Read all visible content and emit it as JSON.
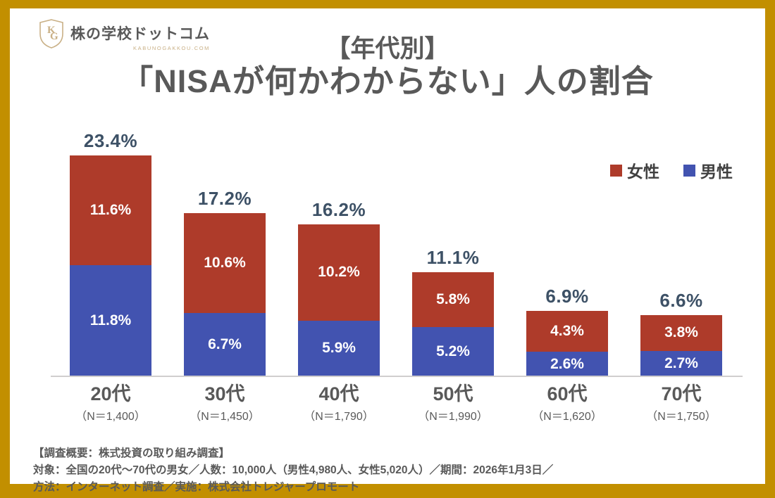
{
  "page": {
    "frame_color": "#c28f00"
  },
  "logo": {
    "monogram": "KG",
    "brand_name": "株の学校ドットコム",
    "brand_domain": "KABUNOGAKKOU.COM",
    "accent_color": "#c9b086"
  },
  "title": {
    "line1": "【年代別】",
    "line2": "「NISAが何かわからない」人の割合"
  },
  "chart_data": {
    "type": "bar",
    "stacked": true,
    "title": "【年代別】「NISAが何かわからない」人の割合",
    "categories": [
      "20代",
      "30代",
      "40代",
      "50代",
      "60代",
      "70代"
    ],
    "category_n_labels": [
      "（N＝1,400）",
      "（N＝1,450）",
      "（N＝1,790）",
      "（N＝1,990）",
      "（N＝1,620）",
      "（N＝1,750）"
    ],
    "series": [
      {
        "name": "女性",
        "color": "#ae3b2a",
        "values": [
          11.6,
          10.6,
          10.2,
          5.8,
          4.3,
          3.8
        ]
      },
      {
        "name": "男性",
        "color": "#4253b0",
        "values": [
          11.8,
          6.7,
          5.9,
          5.2,
          2.6,
          2.7
        ]
      }
    ],
    "totals": [
      23.4,
      17.2,
      16.2,
      11.1,
      6.9,
      6.6
    ],
    "value_suffix": "%",
    "ylim": [
      0,
      25.7
    ],
    "grid": false,
    "legend_position": "top-right",
    "total_label_color": "#3d5166",
    "axis_line_color": "#d0cece",
    "xlabel": "",
    "ylabel": ""
  },
  "footer": {
    "lines": [
      "【調査概要：株式投資の取り組み調査】",
      "対象：全国の20代～70代の男女／人数：10,000人（男性4,980人、女性5,020人）／期間：2026年1月3日／",
      "方法：インターネット調査／実施：株式会社トレジャープロモート"
    ]
  }
}
